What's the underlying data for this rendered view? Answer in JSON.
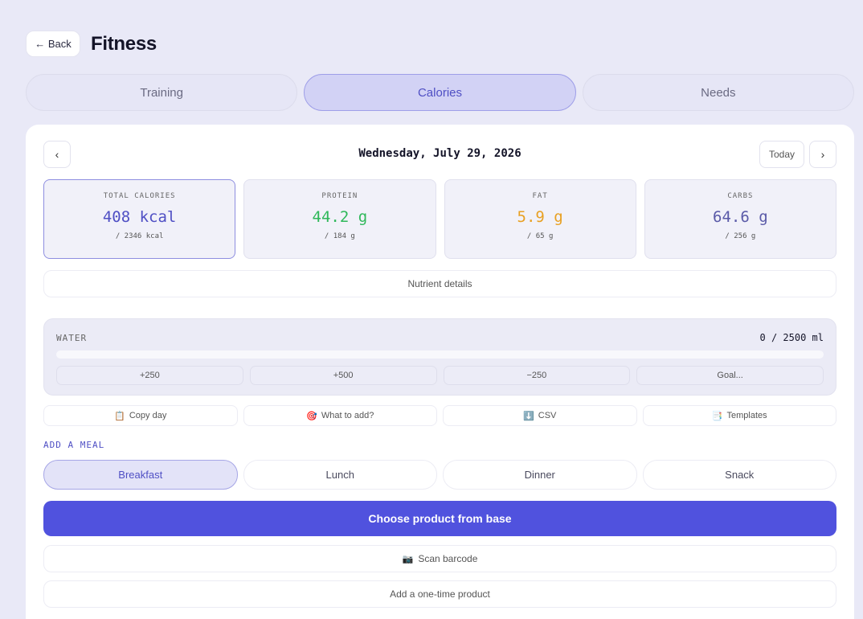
{
  "header": {
    "back_label": "← Back",
    "title": "Fitness"
  },
  "tabs": [
    {
      "label": "Training",
      "active": false
    },
    {
      "label": "Calories",
      "active": true
    },
    {
      "label": "Needs",
      "active": false
    }
  ],
  "date_nav": {
    "prev": "‹",
    "next": "›",
    "date": "Wednesday, July 29, 2026",
    "today": "Today"
  },
  "stats": [
    {
      "label": "TOTAL CALORIES",
      "value": "408 kcal",
      "goal": "/ 2346 kcal",
      "color": "#4f4fc4"
    },
    {
      "label": "PROTEIN",
      "value": "44.2 g",
      "goal": "/ 184 g",
      "color": "#2fb85a"
    },
    {
      "label": "FAT",
      "value": "5.9 g",
      "goal": "/ 65 g",
      "color": "#e8a022"
    },
    {
      "label": "CARBS",
      "value": "64.6 g",
      "goal": "/ 256 g",
      "color": "#5a5aa8"
    }
  ],
  "nutrient_details": "Nutrient details",
  "water": {
    "label": "WATER",
    "value": "0 / 2500 ml",
    "progress": 0,
    "buttons": [
      "+250",
      "+500",
      "−250",
      "Goal..."
    ]
  },
  "actions": [
    {
      "icon": "📋",
      "label": "Copy day"
    },
    {
      "icon": "🎯",
      "label": "What to add?"
    },
    {
      "icon": "⬇️",
      "label": "CSV"
    },
    {
      "icon": "📑",
      "label": "Templates"
    }
  ],
  "add_meal": {
    "label": "ADD A MEAL",
    "meals": [
      {
        "label": "Breakfast",
        "active": true
      },
      {
        "label": "Lunch",
        "active": false
      },
      {
        "label": "Dinner",
        "active": false
      },
      {
        "label": "Snack",
        "active": false
      }
    ],
    "choose_product": "Choose product from base",
    "scan_icon": "📷",
    "scan_barcode": "Scan barcode",
    "one_time": "Add a one-time product"
  },
  "colors": {
    "accent": "#5052de",
    "background": "#e9e9f7"
  }
}
